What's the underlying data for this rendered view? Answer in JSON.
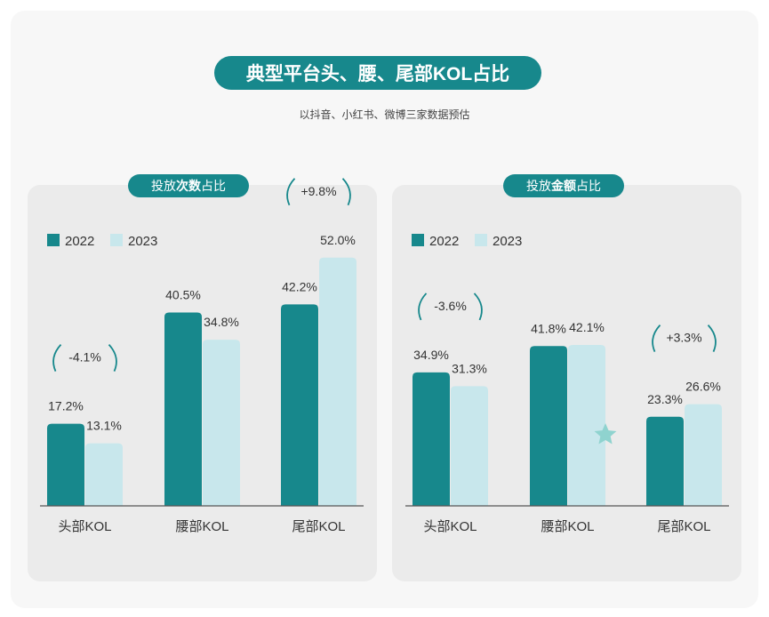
{
  "header": {
    "title": "典型平台头、腰、尾部KOL占比",
    "subtitle": "以抖音、小红书、微博三家数据预估"
  },
  "colors": {
    "y2022": "#17888c",
    "y2023": "#c8e7ec",
    "accent": "#17888c",
    "star": "#8fd3cf"
  },
  "chart_data": [
    {
      "type": "bar",
      "panel_title": {
        "pre": "投放",
        "bold": "次数",
        "post": "占比"
      },
      "categories": [
        "头部KOL",
        "腰部KOL",
        "尾部KOL"
      ],
      "series": [
        {
          "name": "2022",
          "values": [
            17.2,
            40.5,
            42.2
          ],
          "labels": [
            "17.2%",
            "40.5%",
            "42.2%"
          ]
        },
        {
          "name": "2023",
          "values": [
            13.1,
            34.8,
            52.0
          ],
          "labels": [
            "13.1%",
            "34.8%",
            "52.0%"
          ]
        }
      ],
      "changes": [
        {
          "category_index": 0,
          "label": "-4.1%"
        },
        {
          "category_index": 2,
          "label": "+9.8%"
        }
      ],
      "ylim": [
        0,
        60
      ],
      "legend": "top-left"
    },
    {
      "type": "bar",
      "panel_title": {
        "pre": "投放",
        "bold": "金额",
        "post": "占比"
      },
      "categories": [
        "头部KOL",
        "腰部KOL",
        "尾部KOL"
      ],
      "series": [
        {
          "name": "2022",
          "values": [
            34.9,
            41.8,
            23.3
          ],
          "labels": [
            "34.9%",
            "41.8%",
            "23.3%"
          ]
        },
        {
          "name": "2023",
          "values": [
            31.3,
            42.1,
            26.6
          ],
          "labels": [
            "31.3%",
            "42.1%",
            "26.6%"
          ]
        }
      ],
      "changes": [
        {
          "category_index": 0,
          "label": "-3.6%"
        },
        {
          "category_index": 2,
          "label": "+3.3%"
        }
      ],
      "ylim": [
        0,
        60
      ],
      "legend": "top-left"
    }
  ]
}
